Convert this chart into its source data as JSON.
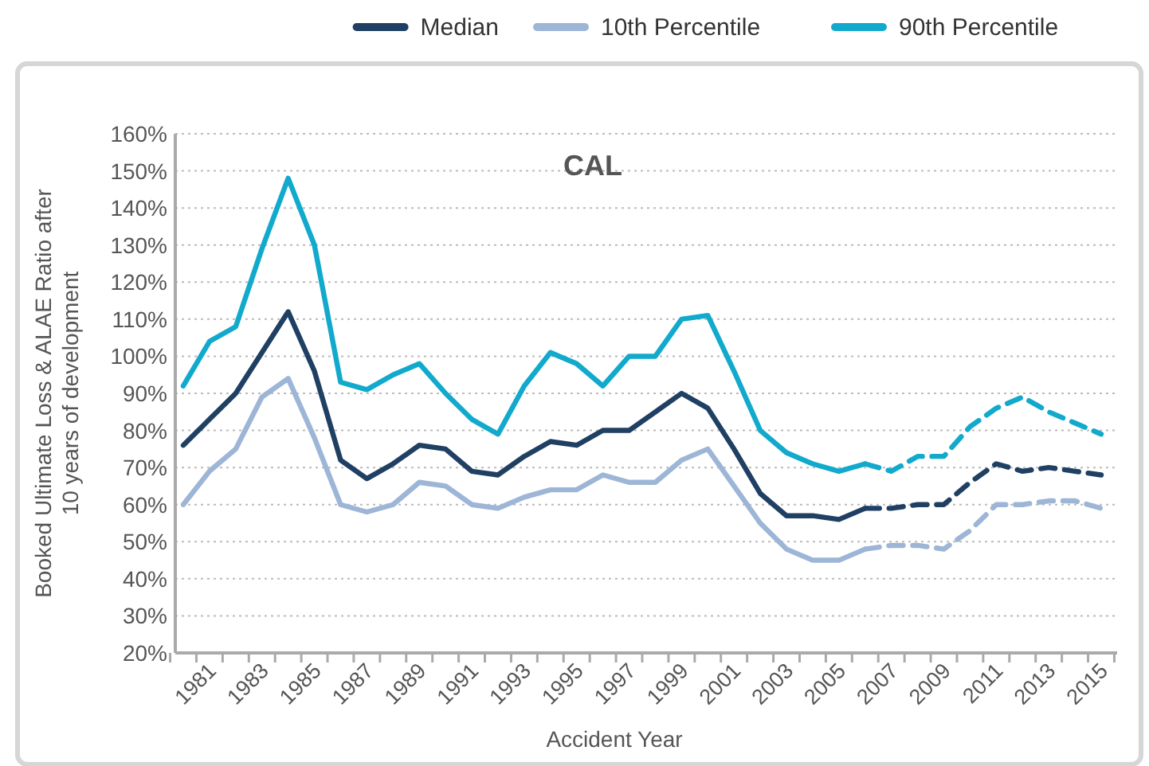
{
  "chart_data": {
    "type": "line",
    "title": "CAL",
    "xlabel": "Accident Year",
    "ylabel": "Booked Ultimate Loss & ALAE Ratio after 10 years of development",
    "categories": [
      null,
      "1981",
      null,
      "1983",
      null,
      "1985",
      null,
      "1987",
      null,
      "1989",
      null,
      "1991",
      null,
      "1993",
      null,
      "1995",
      null,
      "1997",
      null,
      "1999",
      null,
      "2001",
      null,
      "2003",
      null,
      "2005",
      null,
      "2007",
      null,
      "2009",
      null,
      "2011",
      null,
      "2013",
      null,
      "2015"
    ],
    "series": [
      {
        "name": "Median",
        "color": "#1f3f63",
        "line_style": "solid",
        "values": [
          76,
          83,
          90,
          101,
          112,
          96,
          72,
          67,
          71,
          76,
          75,
          69,
          68,
          73,
          77,
          76,
          80,
          80,
          85,
          90,
          86,
          75,
          63,
          57,
          57,
          56,
          59,
          null,
          null,
          null,
          null,
          null,
          null,
          null,
          null,
          null
        ]
      },
      {
        "name": "10th Percentile",
        "color": "#9db5d6",
        "line_style": "solid",
        "values": [
          60,
          69,
          75,
          89,
          94,
          78,
          60,
          58,
          60,
          66,
          65,
          60,
          59,
          62,
          64,
          64,
          68,
          66,
          66,
          72,
          75,
          65,
          55,
          48,
          45,
          45,
          48,
          null,
          null,
          null,
          null,
          null,
          null,
          null,
          null,
          null
        ]
      },
      {
        "name": "90th Percentile",
        "color": "#11a9cc",
        "line_style": "solid",
        "values": [
          92,
          104,
          108,
          129,
          148,
          130,
          93,
          91,
          95,
          98,
          90,
          83,
          79,
          92,
          101,
          98,
          92,
          100,
          100,
          110,
          111,
          96,
          80,
          74,
          71,
          69,
          71,
          null,
          null,
          null,
          null,
          null,
          null,
          null,
          null,
          null
        ]
      },
      {
        "color": "#1f3f63",
        "line_style": "dashed",
        "values": [
          null,
          null,
          null,
          null,
          null,
          null,
          null,
          null,
          null,
          null,
          null,
          null,
          null,
          null,
          null,
          null,
          null,
          null,
          null,
          null,
          null,
          null,
          null,
          null,
          null,
          null,
          59,
          59,
          60,
          60,
          66,
          71,
          69,
          70,
          69,
          68
        ]
      },
      {
        "color": "#9db5d6",
        "line_style": "dashed",
        "values": [
          null,
          null,
          null,
          null,
          null,
          null,
          null,
          null,
          null,
          null,
          null,
          null,
          null,
          null,
          null,
          null,
          null,
          null,
          null,
          null,
          null,
          null,
          null,
          null,
          null,
          null,
          48,
          49,
          49,
          48,
          53,
          60,
          60,
          61,
          61,
          59
        ]
      },
      {
        "color": "#11a9cc",
        "line_style": "dashed",
        "values": [
          null,
          null,
          null,
          null,
          null,
          null,
          null,
          null,
          null,
          null,
          null,
          null,
          null,
          null,
          null,
          null,
          null,
          null,
          null,
          null,
          null,
          null,
          null,
          null,
          null,
          null,
          71,
          69,
          73,
          73,
          81,
          86,
          89,
          85,
          82,
          79
        ]
      }
    ],
    "ylim": [
      20,
      160
    ],
    "yticks": [
      {
        "value": 20,
        "label": "20%"
      },
      {
        "value": 30,
        "label": "30%"
      },
      {
        "value": 40,
        "label": "40%"
      },
      {
        "value": 50,
        "label": "50%"
      },
      {
        "value": 60,
        "label": "60%"
      },
      {
        "value": 70,
        "label": "70%"
      },
      {
        "value": 80,
        "label": "80%"
      },
      {
        "value": 90,
        "label": "90%"
      },
      {
        "value": 100,
        "label": "100%"
      },
      {
        "value": 110,
        "label": "110%"
      },
      {
        "value": 120,
        "label": "120%"
      },
      {
        "value": 130,
        "label": "130%"
      },
      {
        "value": 140,
        "label": "140%"
      },
      {
        "value": 150,
        "label": "150%"
      },
      {
        "value": 160,
        "label": "160%"
      }
    ],
    "grid": "y",
    "legend": "top right",
    "marker": "none"
  }
}
